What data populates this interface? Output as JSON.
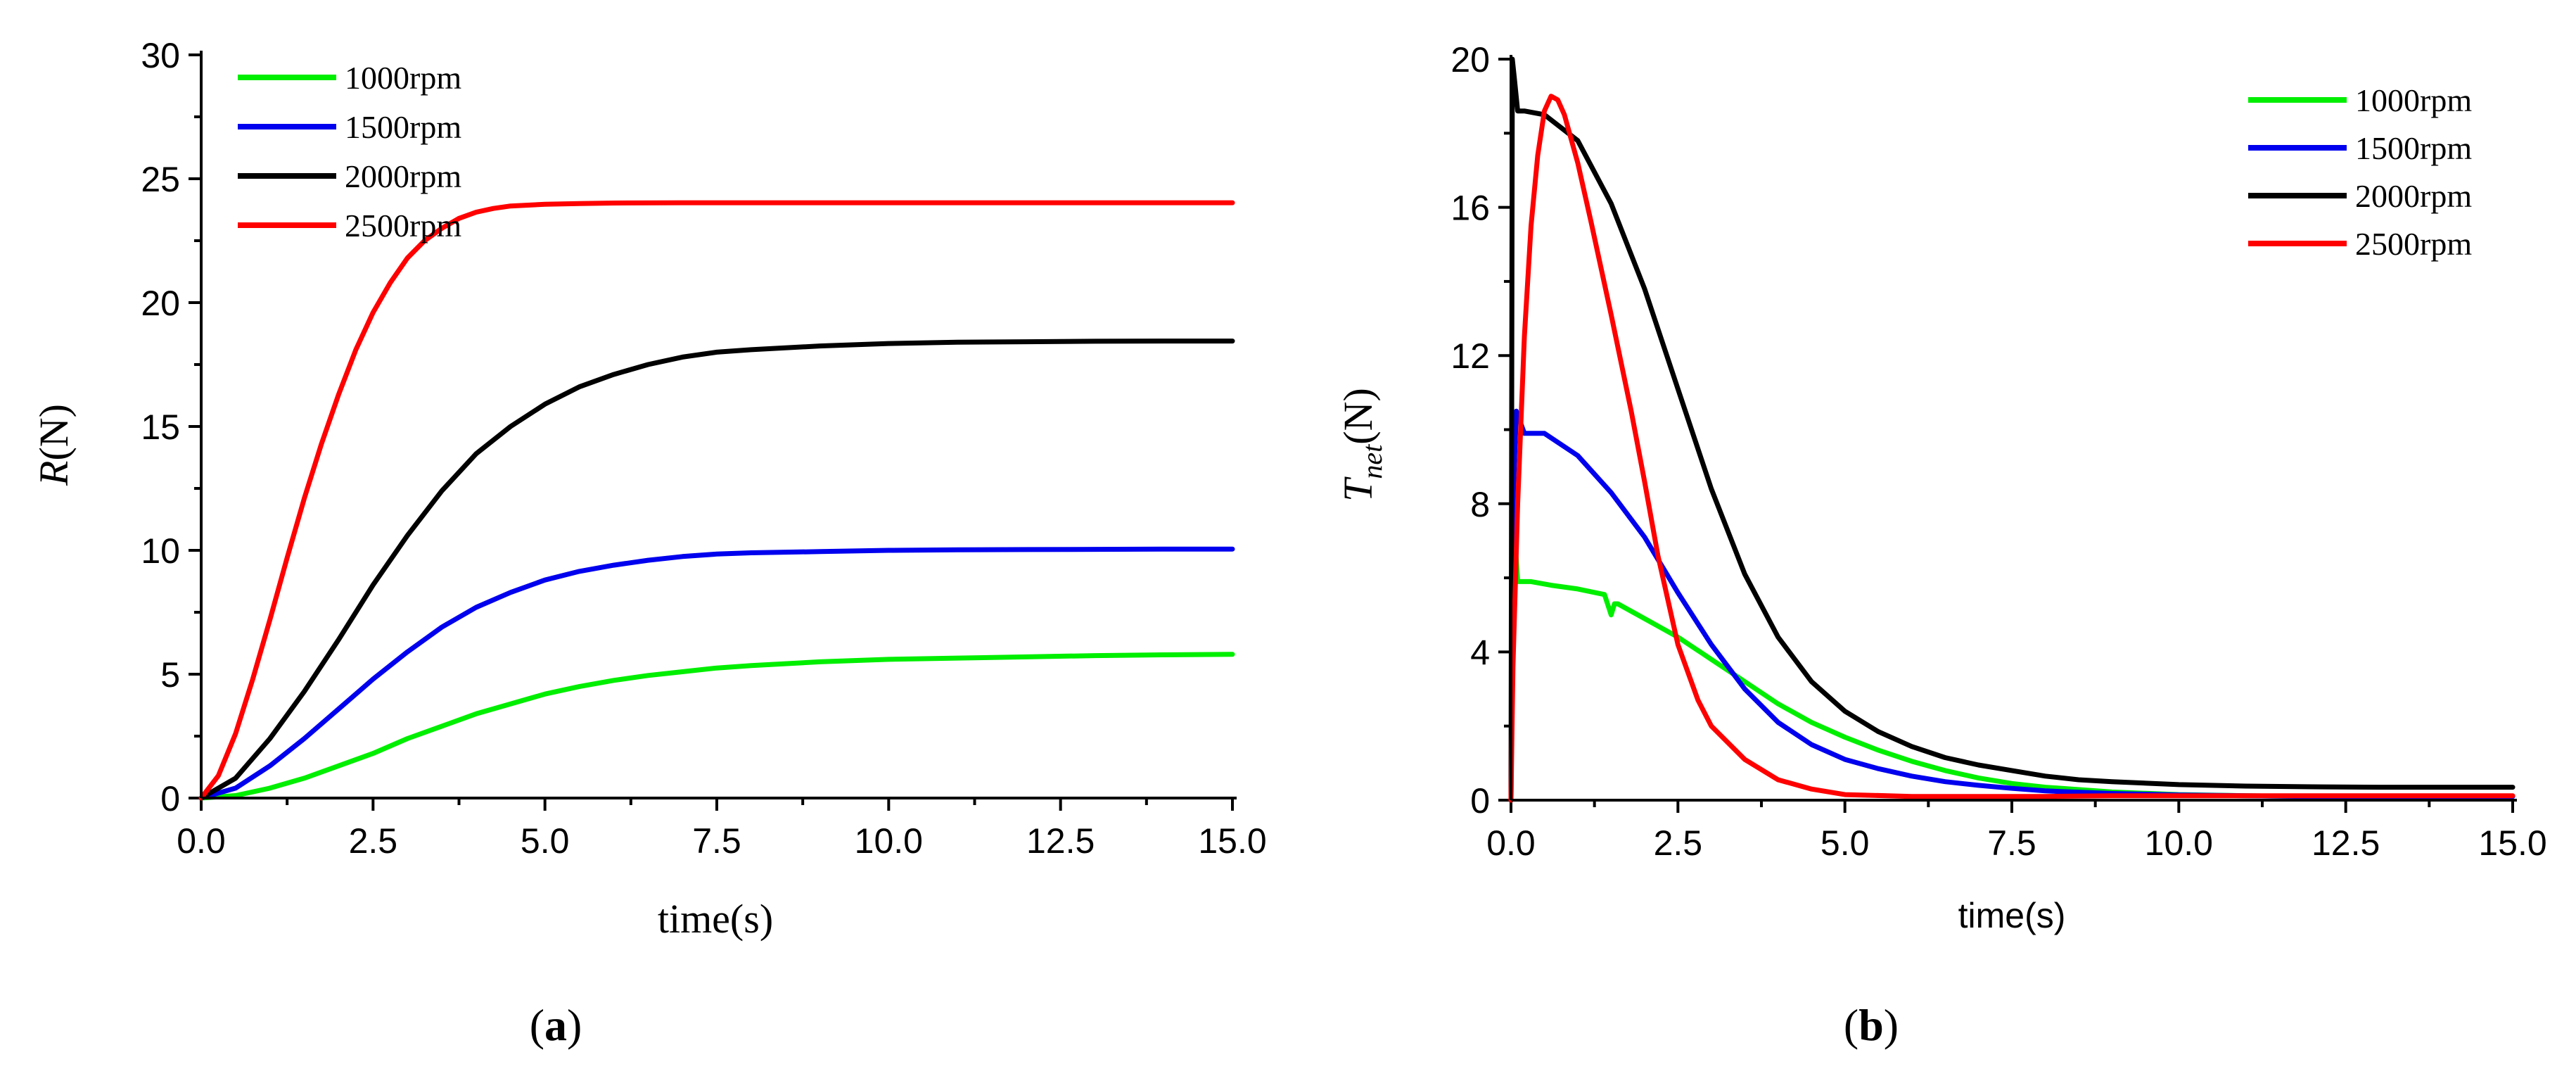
{
  "chart_data": [
    {
      "type": "line",
      "panel": "a",
      "caption": "a",
      "xlabel": "time(s)",
      "ylabel": "R(N)",
      "ylabel_main": "R",
      "ylabel_unit": "(N)",
      "xlim": [
        0,
        15
      ],
      "ylim": [
        0,
        30
      ],
      "x_ticks": [
        0,
        2.5,
        5,
        7.5,
        10,
        12.5,
        15
      ],
      "x_tick_labels": [
        "0.0",
        "2.5",
        "5.0",
        "7.5",
        "10.0",
        "12.5",
        "15.0"
      ],
      "y_ticks": [
        0,
        5,
        10,
        15,
        20,
        25,
        30
      ],
      "y_tick_labels": [
        "0",
        "5",
        "10",
        "15",
        "20",
        "25",
        "30"
      ],
      "legend_position": "top-left",
      "series": [
        {
          "name": "1000rpm",
          "color": "#00ee00",
          "x": [
            0,
            0.5,
            1,
            1.5,
            2,
            2.5,
            3,
            3.5,
            4,
            4.5,
            5,
            5.5,
            6,
            6.5,
            7,
            7.5,
            8,
            9,
            10,
            11,
            12,
            13,
            14,
            15
          ],
          "y": [
            0,
            0.1,
            0.4,
            0.8,
            1.3,
            1.8,
            2.4,
            2.9,
            3.4,
            3.8,
            4.2,
            4.5,
            4.75,
            4.95,
            5.1,
            5.25,
            5.35,
            5.5,
            5.6,
            5.65,
            5.7,
            5.75,
            5.78,
            5.8
          ]
        },
        {
          "name": "1500rpm",
          "color": "#0000ee",
          "x": [
            0,
            0.5,
            1,
            1.5,
            2,
            2.5,
            3,
            3.5,
            4,
            4.5,
            5,
            5.5,
            6,
            6.5,
            7,
            7.5,
            8,
            9,
            10,
            11,
            12,
            13,
            14,
            15
          ],
          "y": [
            0,
            0.4,
            1.3,
            2.4,
            3.6,
            4.8,
            5.9,
            6.9,
            7.7,
            8.3,
            8.8,
            9.15,
            9.4,
            9.6,
            9.75,
            9.85,
            9.9,
            9.95,
            10.0,
            10.02,
            10.03,
            10.04,
            10.05,
            10.05
          ]
        },
        {
          "name": "2000rpm",
          "color": "#000000",
          "x": [
            0,
            0.5,
            1,
            1.5,
            2,
            2.5,
            3,
            3.5,
            4,
            4.5,
            5,
            5.5,
            6,
            6.5,
            7,
            7.5,
            8,
            9,
            10,
            11,
            12,
            13,
            14,
            15
          ],
          "y": [
            0,
            0.8,
            2.4,
            4.3,
            6.4,
            8.6,
            10.6,
            12.4,
            13.9,
            15.0,
            15.9,
            16.6,
            17.1,
            17.5,
            17.8,
            18.0,
            18.1,
            18.25,
            18.35,
            18.4,
            18.42,
            18.44,
            18.45,
            18.45
          ]
        },
        {
          "name": "2500rpm",
          "color": "#ff0000",
          "x": [
            0,
            0.25,
            0.5,
            0.75,
            1,
            1.25,
            1.5,
            1.75,
            2,
            2.25,
            2.5,
            2.75,
            3,
            3.25,
            3.5,
            3.75,
            4,
            4.25,
            4.5,
            5,
            5.5,
            6,
            7,
            8,
            9,
            10,
            11,
            12,
            13,
            14,
            15
          ],
          "y": [
            0,
            0.9,
            2.6,
            4.8,
            7.2,
            9.7,
            12.1,
            14.3,
            16.3,
            18.1,
            19.6,
            20.8,
            21.8,
            22.5,
            23.0,
            23.4,
            23.65,
            23.8,
            23.9,
            23.97,
            24.0,
            24.02,
            24.03,
            24.03,
            24.03,
            24.03,
            24.03,
            24.03,
            24.03,
            24.03,
            24.03
          ]
        }
      ]
    },
    {
      "type": "line",
      "panel": "b",
      "caption": "b",
      "xlabel": "time(s)",
      "ylabel": "Tnet(N)",
      "ylabel_main": "T",
      "ylabel_sub": "net",
      "ylabel_unit": "(N)",
      "xlim": [
        0,
        15
      ],
      "ylim": [
        0,
        20
      ],
      "x_ticks": [
        0,
        2.5,
        5,
        7.5,
        10,
        12.5,
        15
      ],
      "x_tick_labels": [
        "0.0",
        "2.5",
        "5.0",
        "7.5",
        "10.0",
        "12.5",
        "15.0"
      ],
      "y_ticks": [
        0,
        4,
        8,
        12,
        16,
        20
      ],
      "y_tick_labels": [
        "0",
        "4",
        "8",
        "12",
        "16",
        "20"
      ],
      "legend_position": "top-right",
      "series": [
        {
          "name": "1000rpm",
          "color": "#00ee00",
          "x": [
            0,
            0.03,
            0.1,
            0.3,
            0.6,
            1.0,
            1.4,
            1.5,
            1.55,
            1.6,
            2.0,
            2.5,
            3.0,
            3.5,
            4.0,
            4.5,
            5.0,
            5.5,
            6.0,
            6.5,
            7.0,
            7.5,
            8.0,
            9.0,
            10.0,
            11.0,
            12.0,
            13.0,
            14.0,
            15.0
          ],
          "y": [
            0,
            8.0,
            5.9,
            5.9,
            5.8,
            5.7,
            5.55,
            5.0,
            5.3,
            5.3,
            4.9,
            4.4,
            3.8,
            3.2,
            2.6,
            2.1,
            1.7,
            1.35,
            1.05,
            0.8,
            0.6,
            0.45,
            0.35,
            0.22,
            0.15,
            0.12,
            0.1,
            0.1,
            0.1,
            0.1
          ]
        },
        {
          "name": "1500rpm",
          "color": "#0000ee",
          "x": [
            0,
            0.03,
            0.08,
            0.2,
            0.5,
            1.0,
            1.5,
            2.0,
            2.5,
            3.0,
            3.5,
            4.0,
            4.5,
            5.0,
            5.5,
            6.0,
            6.5,
            7.0,
            7.5,
            8.0,
            9.0,
            10.0,
            11.0,
            12.0,
            13.0,
            14.0,
            15.0
          ],
          "y": [
            0,
            8.0,
            10.5,
            9.9,
            9.9,
            9.3,
            8.3,
            7.1,
            5.6,
            4.2,
            3.0,
            2.1,
            1.5,
            1.1,
            0.85,
            0.65,
            0.5,
            0.4,
            0.32,
            0.25,
            0.18,
            0.14,
            0.12,
            0.1,
            0.1,
            0.1,
            0.1
          ]
        },
        {
          "name": "2000rpm",
          "color": "#000000",
          "x": [
            0,
            0.02,
            0.05,
            0.1,
            0.2,
            0.5,
            1.0,
            1.5,
            2.0,
            2.5,
            3.0,
            3.5,
            4.0,
            4.5,
            5.0,
            5.5,
            6.0,
            6.5,
            7.0,
            7.5,
            8.0,
            8.5,
            9.0,
            10.0,
            11.0,
            12.0,
            13.0,
            14.0,
            15.0
          ],
          "y": [
            0,
            20.0,
            19.5,
            18.6,
            18.6,
            18.5,
            17.8,
            16.1,
            13.8,
            11.1,
            8.4,
            6.1,
            4.4,
            3.2,
            2.4,
            1.85,
            1.45,
            1.15,
            0.95,
            0.8,
            0.65,
            0.55,
            0.5,
            0.42,
            0.38,
            0.36,
            0.35,
            0.35,
            0.35
          ]
        },
        {
          "name": "2500rpm",
          "color": "#ff0000",
          "x": [
            0,
            0.03,
            0.1,
            0.2,
            0.3,
            0.4,
            0.5,
            0.6,
            0.7,
            0.8,
            1.0,
            1.2,
            1.5,
            1.8,
            2.0,
            2.2,
            2.5,
            2.8,
            3.0,
            3.5,
            4.0,
            4.5,
            5.0,
            6.0,
            7.0,
            8.0,
            9.0,
            10.0,
            11.0,
            12.0,
            13.0,
            14.0,
            15.0
          ],
          "y": [
            0,
            3.6,
            8.0,
            12.5,
            15.5,
            17.4,
            18.6,
            19.0,
            18.9,
            18.5,
            17.2,
            15.6,
            13.1,
            10.5,
            8.6,
            6.6,
            4.2,
            2.7,
            2.0,
            1.1,
            0.55,
            0.3,
            0.15,
            0.1,
            0.1,
            0.1,
            0.12,
            0.12,
            0.12,
            0.12,
            0.12,
            0.12,
            0.12
          ]
        }
      ]
    }
  ]
}
